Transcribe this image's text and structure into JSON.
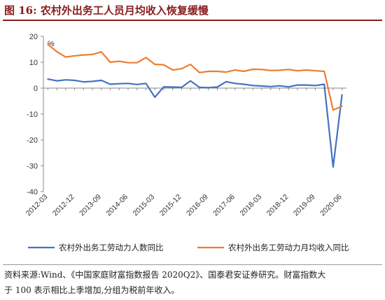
{
  "figure": {
    "title": "图 16:  农村外出务工人员月均收入恢复缓慢",
    "source_line1": "资料来源:Wind、《中国家庭财富指数报告 2020Q2》、国泰君安证券研究。财富指数大",
    "source_line2": "于 100 表示相比上季增加,分组为税前年收入。"
  },
  "chart_data": {
    "type": "line",
    "unit_label": "%",
    "ylim": [
      -40,
      20
    ],
    "yticks": [
      20,
      10,
      0,
      -10,
      -20,
      -30,
      -40
    ],
    "grid": false,
    "legend_position": "bottom",
    "x_start": "2012-03",
    "xtick_labels": [
      "2012-03",
      "2012-12",
      "2013-09",
      "2014-06",
      "2015-03",
      "2015-12",
      "2016-09",
      "2017-06",
      "2018-03",
      "2018-12",
      "2019-09",
      "2020-06"
    ],
    "x": [
      "2012-03",
      "2012-06",
      "2012-09",
      "2012-12",
      "2013-03",
      "2013-06",
      "2013-09",
      "2013-12",
      "2014-03",
      "2014-06",
      "2014-09",
      "2014-12",
      "2015-03",
      "2015-06",
      "2015-09",
      "2015-12",
      "2016-03",
      "2016-06",
      "2016-09",
      "2016-12",
      "2017-03",
      "2017-06",
      "2017-09",
      "2017-12",
      "2018-03",
      "2018-06",
      "2018-09",
      "2018-12",
      "2019-03",
      "2019-06",
      "2019-09",
      "2019-12",
      "2020-03",
      "2020-06"
    ],
    "series": [
      {
        "name": "农村外出务工劳动力人数同比",
        "color": "#4472c4",
        "values": [
          3.5,
          2.8,
          3.2,
          3.0,
          2.4,
          2.6,
          3.0,
          1.5,
          1.7,
          1.8,
          1.4,
          1.8,
          -3.5,
          0.5,
          0.4,
          0.3,
          2.8,
          0.3,
          0.2,
          0.4,
          2.5,
          1.8,
          1.5,
          1.0,
          0.8,
          0.6,
          0.9,
          0.5,
          1.2,
          1.2,
          1.0,
          1.5,
          -30.5,
          -2.6
        ]
      },
      {
        "name": "农村外出务工劳动力月均收入同比",
        "color": "#ed7d31",
        "values": [
          16.9,
          14.1,
          12.0,
          12.5,
          12.8,
          13.0,
          14.0,
          10.0,
          10.4,
          9.8,
          9.8,
          11.8,
          9.2,
          9.0,
          7.0,
          7.5,
          9.2,
          6.0,
          6.5,
          6.5,
          6.2,
          7.0,
          6.5,
          7.3,
          7.2,
          6.8,
          6.9,
          7.2,
          6.7,
          7.0,
          6.7,
          6.5,
          -8.5,
          -7.0
        ]
      }
    ]
  }
}
